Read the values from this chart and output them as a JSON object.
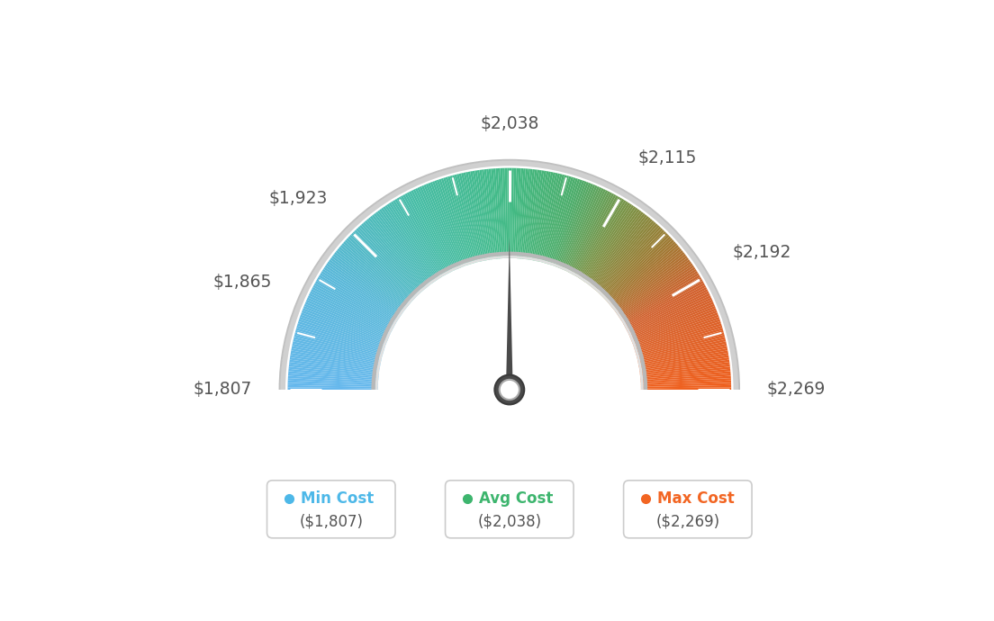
{
  "min_val": 1807,
  "avg_val": 2038,
  "max_val": 2269,
  "legend": [
    {
      "label": "Min Cost",
      "sublabel": "($1,807)",
      "color": "#4db8e8"
    },
    {
      "label": "Avg Cost",
      "sublabel": "($2,038)",
      "color": "#3db56e"
    },
    {
      "label": "Max Cost",
      "sublabel": "($2,269)",
      "color": "#f26522"
    }
  ],
  "background_color": "#ffffff",
  "color_stops": [
    [
      0.0,
      [
        0.4,
        0.72,
        0.93
      ]
    ],
    [
      0.18,
      [
        0.35,
        0.72,
        0.85
      ]
    ],
    [
      0.35,
      [
        0.28,
        0.74,
        0.65
      ]
    ],
    [
      0.5,
      [
        0.26,
        0.73,
        0.52
      ]
    ],
    [
      0.6,
      [
        0.3,
        0.68,
        0.42
      ]
    ],
    [
      0.68,
      [
        0.48,
        0.58,
        0.28
      ]
    ],
    [
      0.76,
      [
        0.62,
        0.48,
        0.2
      ]
    ],
    [
      0.84,
      [
        0.82,
        0.38,
        0.18
      ]
    ],
    [
      1.0,
      [
        0.94,
        0.38,
        0.12
      ]
    ]
  ],
  "label_data": [
    [
      1807,
      "$1,807",
      "right"
    ],
    [
      1865,
      "$1,865",
      "right"
    ],
    [
      1923,
      "$1,923",
      "right"
    ],
    [
      2038,
      "$2,038",
      "center"
    ],
    [
      2115,
      "$2,115",
      "left"
    ],
    [
      2192,
      "$2,192",
      "left"
    ],
    [
      2269,
      "$2,269",
      "left"
    ]
  ]
}
